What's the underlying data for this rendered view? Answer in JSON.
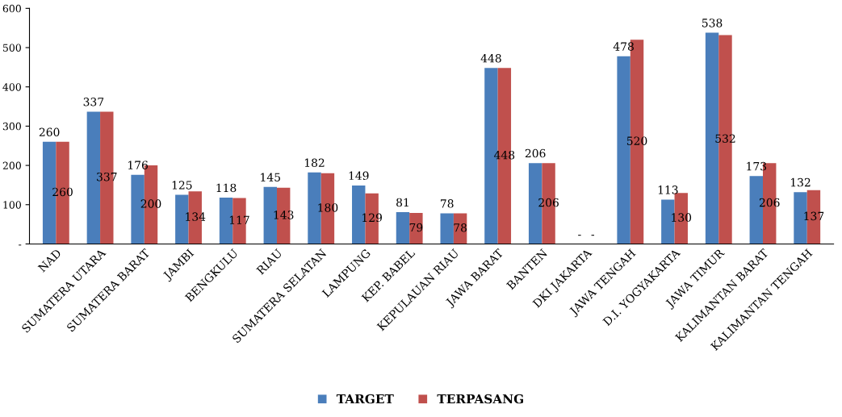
{
  "chart_data": {
    "type": "bar",
    "categories": [
      "NAD",
      "SUMATERA UTARA",
      "SUMATERA BARAT",
      "JAMBI",
      "BENGKULU",
      "RIAU",
      "SUMATERA SELATAN",
      "LAMPUNG",
      "KEP. BABEL",
      "KEPULAUAN RIAU",
      "JAWA BARAT",
      "BANTEN",
      "DKI JAKARTA",
      "JAWA TENGAH",
      "D.I. YOGYAKARTA",
      "JAWA TIMUR",
      "KALIMANTAN BARAT",
      "KALIMANTAN TENGAH"
    ],
    "series": [
      {
        "name": "TARGET",
        "color": "#4a7ebb",
        "values": [
          260,
          337,
          176,
          125,
          118,
          145,
          182,
          149,
          81,
          78,
          448,
          206,
          0,
          478,
          113,
          538,
          173,
          132
        ],
        "value_labels": [
          "260",
          "337",
          "176",
          "125",
          "118",
          "145",
          "182",
          "149",
          "81",
          "78",
          "448",
          "206",
          "-",
          "478",
          "113",
          "538",
          "173",
          "132"
        ]
      },
      {
        "name": "TERPASANG",
        "color": "#c0504d",
        "values": [
          260,
          337,
          200,
          134,
          117,
          143,
          180,
          129,
          79,
          78,
          448,
          206,
          0,
          520,
          130,
          532,
          206,
          137
        ],
        "value_labels": [
          "260",
          "337",
          "200",
          "134",
          "117",
          "143",
          "180",
          "129",
          "79",
          "78",
          "448",
          "206",
          "-",
          "520",
          "130",
          "532",
          "206",
          "137"
        ]
      }
    ],
    "ylim": [
      0,
      600
    ],
    "yticks": [
      {
        "value": 0,
        "label": "-"
      },
      100,
      200,
      300,
      400,
      500,
      600
    ],
    "grid": false,
    "legend": "bottom"
  }
}
